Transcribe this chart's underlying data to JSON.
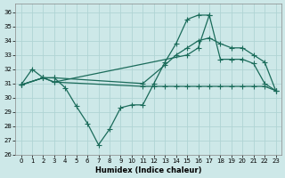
{
  "xlabel": "Humidex (Indice chaleur)",
  "bg_color": "#cde8e8",
  "grid_color": "#b0d4d4",
  "line_color": "#1a6b5a",
  "xlim": [
    -0.5,
    23.5
  ],
  "ylim": [
    26,
    36.6
  ],
  "yticks": [
    26,
    27,
    28,
    29,
    30,
    31,
    32,
    33,
    34,
    35,
    36
  ],
  "xticks": [
    0,
    1,
    2,
    3,
    4,
    5,
    6,
    7,
    8,
    9,
    10,
    11,
    12,
    13,
    14,
    15,
    16,
    17,
    18,
    19,
    20,
    21,
    22,
    23
  ],
  "s1x": [
    0,
    1,
    2,
    3,
    4,
    5,
    6,
    7,
    8,
    9,
    10,
    11,
    12,
    13,
    14,
    15,
    16,
    17
  ],
  "s1y": [
    30.9,
    32.0,
    31.4,
    31.4,
    30.7,
    29.4,
    28.2,
    26.7,
    27.8,
    29.3,
    29.5,
    29.5,
    31.0,
    32.5,
    33.8,
    35.5,
    35.8,
    35.8
  ],
  "s2x": [
    0,
    2,
    3,
    11,
    13,
    14,
    15,
    16,
    17,
    18,
    19,
    20,
    21,
    22,
    23
  ],
  "s2y": [
    30.9,
    31.4,
    31.4,
    31.0,
    32.3,
    33.0,
    33.5,
    34.0,
    34.2,
    33.8,
    33.5,
    33.5,
    33.0,
    32.5,
    30.5
  ],
  "s3x": [
    0,
    2,
    3,
    15,
    16,
    17,
    18,
    19,
    20,
    21,
    22,
    23
  ],
  "s3y": [
    30.9,
    31.4,
    31.1,
    33.0,
    33.5,
    35.8,
    32.7,
    32.7,
    32.7,
    32.4,
    31.0,
    30.5
  ],
  "s4x": [
    0,
    2,
    3,
    11,
    12,
    13,
    14,
    15,
    16,
    17,
    18,
    19,
    20,
    21,
    22,
    23
  ],
  "s4y": [
    30.9,
    31.4,
    31.1,
    30.8,
    30.8,
    30.8,
    30.8,
    30.8,
    30.8,
    30.8,
    30.8,
    30.8,
    30.8,
    30.8,
    30.8,
    30.5
  ]
}
